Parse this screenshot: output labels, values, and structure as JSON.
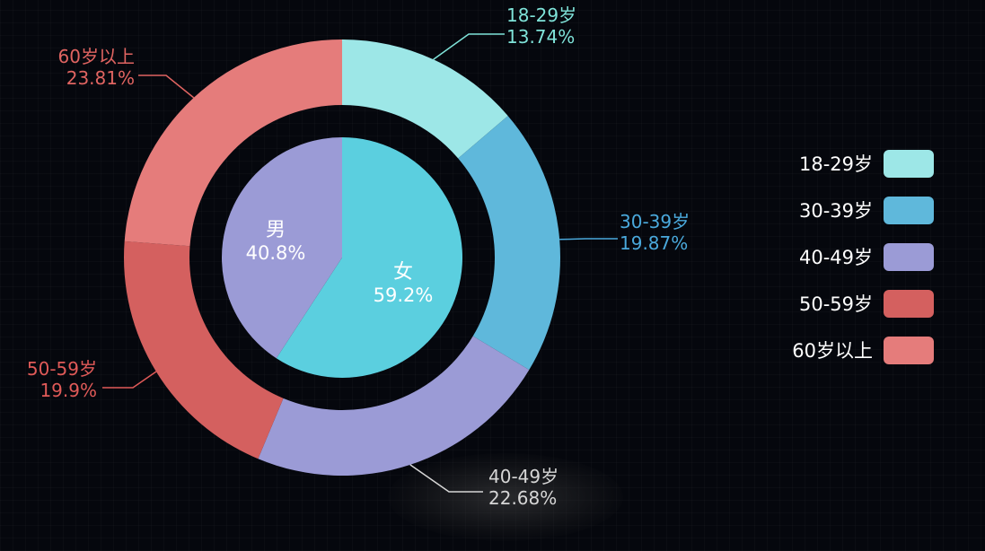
{
  "chart_data": [
    {
      "type": "pie",
      "name": "",
      "slices": [
        {
          "label": "女",
          "percent_label": "59.2%",
          "value": 59.2,
          "color": "#5bcfdf"
        },
        {
          "label": "男",
          "percent_label": "40.8%",
          "value": 40.8,
          "color": "#9b9bd6"
        }
      ]
    },
    {
      "type": "pie",
      "name": "",
      "slices": [
        {
          "label": "18-29岁",
          "percent_label": "13.74%",
          "value": 13.74,
          "color": "#9de7e7",
          "label_color": "#7fe3d9"
        },
        {
          "label": "30-39岁",
          "percent_label": "19.87%",
          "value": 19.87,
          "color": "#5fb8db",
          "label_color": "#4aa9dc"
        },
        {
          "label": "40-49岁",
          "percent_label": "22.68%",
          "value": 22.68,
          "color": "#9b9bd6",
          "label_color": "#d6d6d6"
        },
        {
          "label": "50-59岁",
          "percent_label": "19.9%",
          "value": 19.9,
          "color": "#d4605f",
          "label_color": "#e05a58"
        },
        {
          "label": "60岁以上",
          "percent_label": "23.81%",
          "value": 23.81,
          "color": "#e57c7b",
          "label_color": "#e06461"
        }
      ]
    }
  ],
  "legend": {
    "position": "right",
    "items": [
      {
        "label": "18-29岁",
        "color": "#9de7e7"
      },
      {
        "label": "30-39岁",
        "color": "#5fb8db"
      },
      {
        "label": "40-49岁",
        "color": "#9b9bd6"
      },
      {
        "label": "50-59岁",
        "color": "#d4605f"
      },
      {
        "label": "60岁以上",
        "color": "#e57c7b"
      }
    ]
  }
}
